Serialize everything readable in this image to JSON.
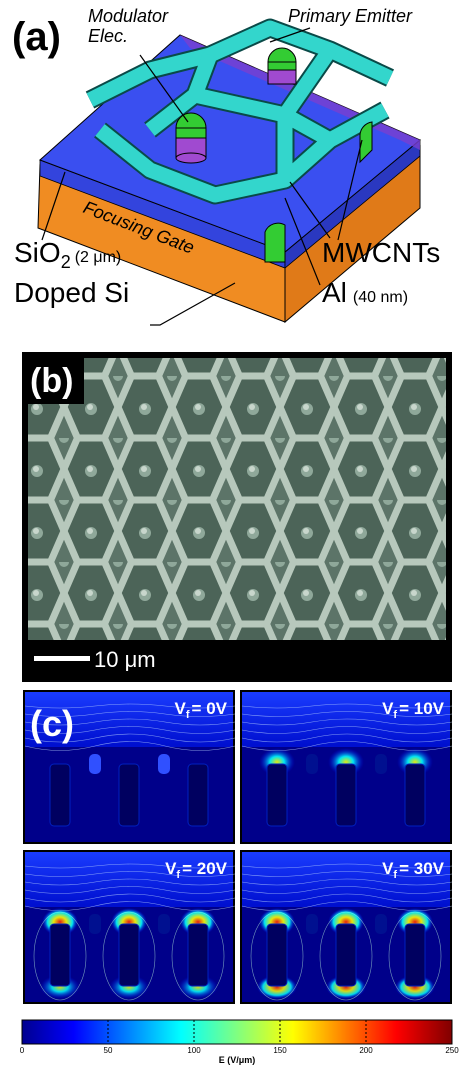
{
  "panel_a": {
    "label": "(a)",
    "modulator": [
      "Modulator",
      "Elec."
    ],
    "primary_emitter": "Primary Emitter",
    "focusing_gate": "Focusing Gate",
    "sio2": {
      "text": "SiO",
      "sub": "2",
      "note": "(2 μm)"
    },
    "doped_si": "Doped Si",
    "mwcnts": "MWCNTs",
    "al": {
      "text": "Al",
      "note": "(40 nm)"
    }
  },
  "panel_b": {
    "label": "(b)",
    "scale_bar": "10 μm"
  },
  "panel_c": {
    "label": "(c)",
    "panels": [
      {
        "symbol": "V",
        "sub": "f",
        "text": "= 0V"
      },
      {
        "symbol": "V",
        "sub": "f",
        "text": "= 10V"
      },
      {
        "symbol": "V",
        "sub": "f",
        "text": "= 20V"
      },
      {
        "symbol": "V",
        "sub": "f",
        "text": "= 30V"
      }
    ],
    "colorbar": {
      "label": "E (V/μm)",
      "lim": [
        0,
        250
      ],
      "ticks": [
        0,
        50,
        100,
        150,
        200,
        250
      ]
    }
  }
}
